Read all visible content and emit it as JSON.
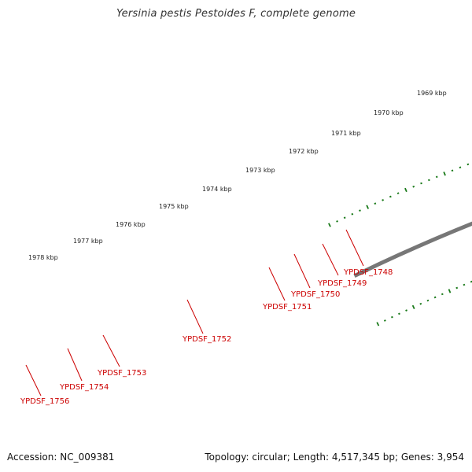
{
  "title": "Yersinia pestis Pestoides F, complete genome",
  "footer": {
    "accession": "Accession: NC_009381",
    "summary": "Topology: circular; Length: 4,517,345 bp; Genes: 3,954"
  },
  "colors": {
    "backbone": "#777777",
    "tick": "#1a7a1a",
    "gene_forward": "#e00000",
    "gene_other": "#666666",
    "gene_label": "#cc0000",
    "green_dark": "#2e8b1e",
    "green_light": "#a6e23a",
    "blue": "#1a3fe0"
  },
  "scale_labels": [
    "1969 kbp",
    "1970 kbp",
    "1971 kbp",
    "1972 kbp",
    "1973 kbp",
    "1974 kbp",
    "1975 kbp",
    "1976 kbp",
    "1977 kbp",
    "1978 kbp"
  ],
  "gene_labels": [
    "YPDSF_1748",
    "YPDSF_1749",
    "YPDSF_1750",
    "YPDSF_1751",
    "YPDSF_1752",
    "YPDSF_1753",
    "YPDSF_1754",
    "YPDSF_1756"
  ]
}
